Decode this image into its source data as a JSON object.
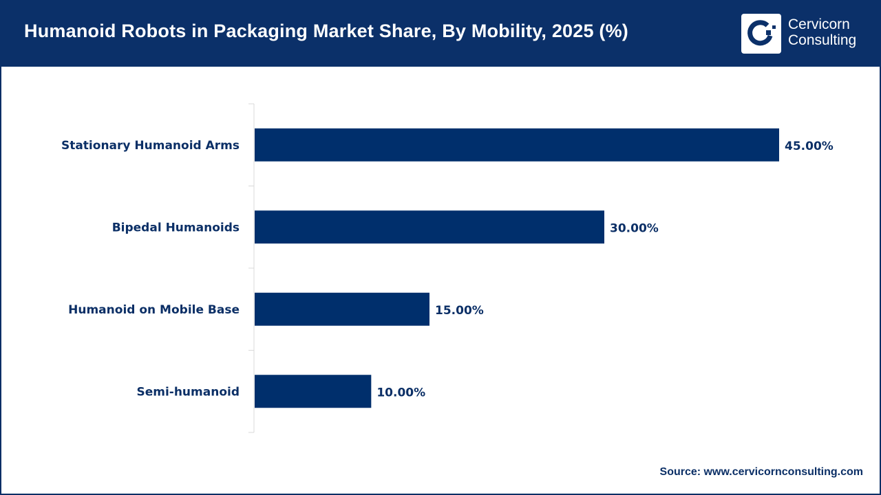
{
  "header": {
    "title": "Humanoid Robots in Packaging Market Share, By Mobility, 2025 (%)",
    "logo_text_line1": "Cervicorn",
    "logo_text_line2": "Consulting"
  },
  "source": "Source: www.cervicornconsulting.com",
  "colors": {
    "bar": "#002f6c",
    "header": "#0b3069"
  },
  "chart_data": {
    "type": "bar",
    "orientation": "horizontal",
    "title": "Humanoid Robots in Packaging Market Share, By Mobility, 2025 (%)",
    "categories": [
      "Stationary Humanoid Arms",
      "Bipedal Humanoids",
      "Humanoid on Mobile Base",
      "Semi-humanoid"
    ],
    "values": [
      45,
      30,
      15,
      10
    ],
    "labels": [
      "45.00%",
      "30.00%",
      "15.00%",
      "10.00%"
    ],
    "xlim": [
      0,
      50
    ],
    "grid": false,
    "legend": "none"
  }
}
